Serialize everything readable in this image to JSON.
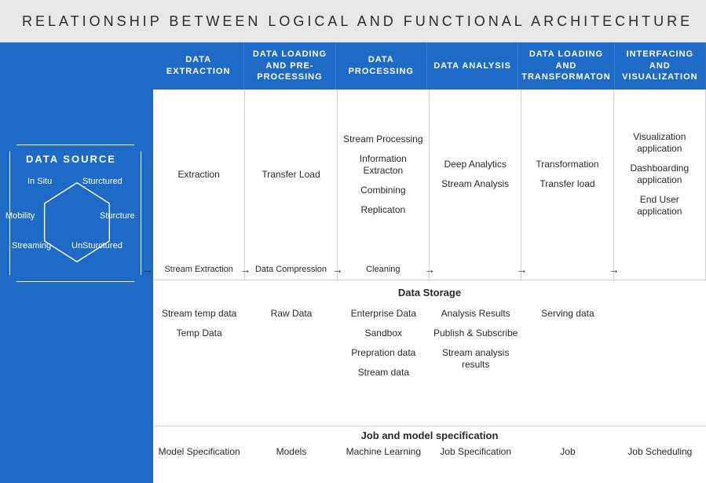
{
  "title": "RELATIONSHIP BETWEEN LOGICAL AND FUNCTIONAL ARCHITECHTURE",
  "colors": {
    "panel_blue": "#1e6bc7",
    "title_bg": "#e8e8e8",
    "text_dark": "#2a2a2a",
    "border": "#d0d0d0",
    "white": "#ffffff"
  },
  "data_source": {
    "title": "DATA SOURCE",
    "hex_labels": {
      "top_left": "In Situ",
      "top_right": "Sturctured",
      "mid_left": "Mobility",
      "mid_right": "Sturcture",
      "bot_left": "Streaming",
      "bot_right": "UnSturctured"
    }
  },
  "columns": [
    {
      "header": "DATA EXTRACTION",
      "body": [
        "Extraction"
      ],
      "flow": "Stream Extraction",
      "storage": [
        "Stream temp data",
        "Temp Data"
      ],
      "job": "Model Specification"
    },
    {
      "header": "DATA LOADING AND PRE-PROCESSING",
      "body": [
        "Transfer Load"
      ],
      "flow": "Data Compression",
      "storage": [
        "Raw Data"
      ],
      "job": "Models"
    },
    {
      "header": "DATA PROCESSING",
      "body": [
        "Stream Processing",
        "Information Extracton",
        "Combining",
        "Replicaton"
      ],
      "flow": "Cleaning",
      "storage": [
        "Enterprise Data",
        "Sandbox",
        "Prepration data",
        "Stream data"
      ],
      "job": "Machine Learning"
    },
    {
      "header": "DATA ANALYSIS",
      "body": [
        "Deep Analytics",
        "Stream Analysis"
      ],
      "flow": "",
      "storage": [
        "Analysis Results",
        "Publish & Subscribe",
        "Stream analysis results"
      ],
      "job": "Job Specification"
    },
    {
      "header": "DATA LOADING AND TRANSFORMATON",
      "body": [
        "Transformation",
        "Transfer load"
      ],
      "flow": "",
      "storage": [
        "Serving data"
      ],
      "job": "Job"
    },
    {
      "header": "INTERFACING AND VISUALIZATION",
      "body": [
        "Visualization application",
        "Dashboarding application",
        "End User application"
      ],
      "flow": "",
      "storage": [],
      "job": "Job Scheduling"
    }
  ],
  "section_titles": {
    "storage": "Data Storage",
    "job": "Job and model specification"
  }
}
